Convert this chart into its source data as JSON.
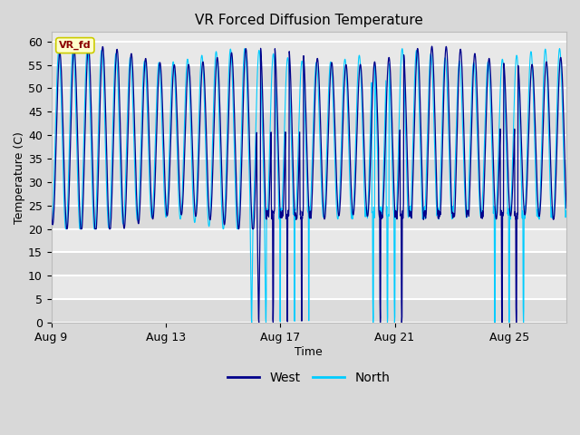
{
  "title": "VR Forced Diffusion Temperature",
  "xlabel": "Time",
  "ylabel": "Temperature (C)",
  "ylim": [
    0,
    62
  ],
  "yticks": [
    0,
    5,
    10,
    15,
    20,
    25,
    30,
    35,
    40,
    45,
    50,
    55,
    60
  ],
  "x_tick_days": [
    9,
    13,
    17,
    21,
    25
  ],
  "x_tick_labels": [
    "Aug 9",
    "Aug 13",
    "Aug 17",
    "Aug 21",
    "Aug 25"
  ],
  "plot_bg_color": "#e8e8e8",
  "fig_bg_color": "#d8d8d8",
  "grid_color": "#ffffff",
  "west_color": "#00008B",
  "north_color": "#00CCFF",
  "legend_label_west": "West",
  "legend_label_north": "North",
  "watermark_text": "VR_fd",
  "watermark_bg": "#ffffcc",
  "watermark_border": "#cccc00",
  "watermark_text_color": "#8B0000"
}
